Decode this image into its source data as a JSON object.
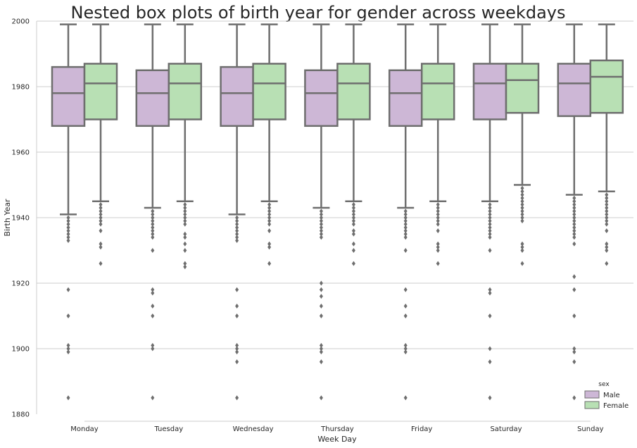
{
  "chart_data": {
    "type": "box",
    "title": "Nested box plots of birth year for gender across weekdays",
    "xlabel": "Week Day",
    "ylabel": "Birth Year",
    "ylim": [
      1880,
      2000
    ],
    "yticks": [
      "1880",
      "1900",
      "1920",
      "1940",
      "1960",
      "1980",
      "2000"
    ],
    "grid": true,
    "categories": [
      "Monday",
      "Tuesday",
      "Wednesday",
      "Thursday",
      "Friday",
      "Saturday",
      "Sunday"
    ],
    "legend": {
      "title": "sex",
      "position": "bottom-right",
      "items": [
        {
          "label": "Male",
          "color": "#cdb7d6"
        },
        {
          "label": "Female",
          "color": "#b8e0b4"
        }
      ]
    },
    "series": [
      {
        "name": "Male",
        "color": "#cdb7d6",
        "boxes": [
          {
            "whisker_low": 1941,
            "q1": 1968,
            "median": 1978,
            "q3": 1986,
            "whisker_high": 1999,
            "outliers": [
              1940,
              1939,
              1938,
              1937,
              1936,
              1935,
              1934,
              1933,
              1918,
              1910,
              1901,
              1900,
              1899,
              1885
            ]
          },
          {
            "whisker_low": 1943,
            "q1": 1968,
            "median": 1978,
            "q3": 1985,
            "whisker_high": 1999,
            "outliers": [
              1942,
              1941,
              1940,
              1939,
              1938,
              1937,
              1936,
              1935,
              1934,
              1930,
              1918,
              1917,
              1913,
              1910,
              1901,
              1900,
              1885
            ]
          },
          {
            "whisker_low": 1941,
            "q1": 1968,
            "median": 1978,
            "q3": 1986,
            "whisker_high": 1999,
            "outliers": [
              1940,
              1939,
              1938,
              1937,
              1936,
              1935,
              1934,
              1933,
              1918,
              1913,
              1910,
              1901,
              1900,
              1899,
              1896,
              1885
            ]
          },
          {
            "whisker_low": 1943,
            "q1": 1968,
            "median": 1978,
            "q3": 1985,
            "whisker_high": 1999,
            "outliers": [
              1942,
              1941,
              1940,
              1939,
              1938,
              1937,
              1936,
              1935,
              1934,
              1920,
              1918,
              1916,
              1913,
              1910,
              1901,
              1900,
              1899,
              1896,
              1885
            ]
          },
          {
            "whisker_low": 1943,
            "q1": 1968,
            "median": 1978,
            "q3": 1985,
            "whisker_high": 1999,
            "outliers": [
              1942,
              1941,
              1940,
              1939,
              1938,
              1937,
              1936,
              1935,
              1934,
              1930,
              1918,
              1913,
              1910,
              1901,
              1900,
              1899,
              1885
            ]
          },
          {
            "whisker_low": 1945,
            "q1": 1970,
            "median": 1981,
            "q3": 1987,
            "whisker_high": 1999,
            "outliers": [
              1944,
              1943,
              1942,
              1941,
              1940,
              1939,
              1938,
              1937,
              1936,
              1935,
              1934,
              1930,
              1918,
              1917,
              1910,
              1900,
              1896,
              1885
            ]
          },
          {
            "whisker_low": 1947,
            "q1": 1971,
            "median": 1981,
            "q3": 1987,
            "whisker_high": 1999,
            "outliers": [
              1946,
              1945,
              1944,
              1943,
              1942,
              1941,
              1940,
              1939,
              1938,
              1937,
              1936,
              1935,
              1934,
              1932,
              1922,
              1918,
              1910,
              1900,
              1899,
              1896,
              1885
            ]
          }
        ]
      },
      {
        "name": "Female",
        "color": "#b8e0b4",
        "boxes": [
          {
            "whisker_low": 1945,
            "q1": 1970,
            "median": 1981,
            "q3": 1987,
            "whisker_high": 1999,
            "outliers": [
              1944,
              1943,
              1942,
              1941,
              1940,
              1939,
              1938,
              1936,
              1932,
              1931,
              1926
            ]
          },
          {
            "whisker_low": 1945,
            "q1": 1970,
            "median": 1981,
            "q3": 1987,
            "whisker_high": 1999,
            "outliers": [
              1944,
              1943,
              1942,
              1941,
              1940,
              1939,
              1938,
              1935,
              1934,
              1932,
              1930,
              1926,
              1925
            ]
          },
          {
            "whisker_low": 1945,
            "q1": 1970,
            "median": 1981,
            "q3": 1987,
            "whisker_high": 1999,
            "outliers": [
              1944,
              1943,
              1942,
              1941,
              1940,
              1939,
              1938,
              1936,
              1932,
              1931,
              1926
            ]
          },
          {
            "whisker_low": 1945,
            "q1": 1970,
            "median": 1981,
            "q3": 1987,
            "whisker_high": 1999,
            "outliers": [
              1944,
              1943,
              1942,
              1941,
              1940,
              1939,
              1938,
              1936,
              1935,
              1932,
              1930,
              1926
            ]
          },
          {
            "whisker_low": 1945,
            "q1": 1970,
            "median": 1981,
            "q3": 1987,
            "whisker_high": 1999,
            "outliers": [
              1944,
              1943,
              1942,
              1941,
              1940,
              1939,
              1938,
              1936,
              1932,
              1931,
              1930,
              1926
            ]
          },
          {
            "whisker_low": 1950,
            "q1": 1972,
            "median": 1982,
            "q3": 1987,
            "whisker_high": 1999,
            "outliers": [
              1949,
              1948,
              1947,
              1946,
              1945,
              1944,
              1943,
              1942,
              1941,
              1940,
              1939,
              1932,
              1931,
              1930,
              1926
            ]
          },
          {
            "whisker_low": 1948,
            "q1": 1972,
            "median": 1983,
            "q3": 1988,
            "whisker_high": 1999,
            "outliers": [
              1947,
              1946,
              1945,
              1944,
              1943,
              1942,
              1941,
              1940,
              1939,
              1938,
              1936,
              1932,
              1931,
              1930,
              1926
            ]
          }
        ]
      }
    ]
  }
}
